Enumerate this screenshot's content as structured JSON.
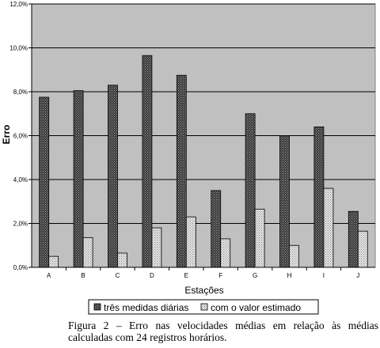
{
  "chart_data": {
    "type": "bar",
    "title": "",
    "xlabel": "Estações",
    "ylabel": "Erro",
    "categories": [
      "A",
      "B",
      "C",
      "D",
      "E",
      "F",
      "G",
      "H",
      "I",
      "J"
    ],
    "series": [
      {
        "name": "três medidas diárias",
        "values": [
          7.75,
          8.05,
          8.3,
          9.65,
          8.75,
          3.5,
          7.0,
          6.0,
          6.4,
          2.55
        ],
        "color": "#3a3a3a"
      },
      {
        "name": "com o valor estimado",
        "values": [
          0.5,
          1.35,
          0.65,
          1.8,
          2.3,
          1.3,
          2.65,
          1.0,
          3.6,
          1.65
        ],
        "color": "#c8c8c8"
      }
    ],
    "ylim": [
      0,
      12
    ],
    "yticks": [
      "0,0%",
      "2,0%",
      "4,0%",
      "6,0%",
      "8,0%",
      "10,0%",
      "12,0%"
    ],
    "ytick_values": [
      0,
      2,
      4,
      6,
      8,
      10,
      12
    ],
    "grid": true,
    "plot_background": "#c0c0c0",
    "legend_position": "bottom"
  },
  "caption": {
    "line1": "Figura 2 – Erro nas velocidades médias em relação às médias",
    "line2": "calculadas com 24 registros horários."
  }
}
